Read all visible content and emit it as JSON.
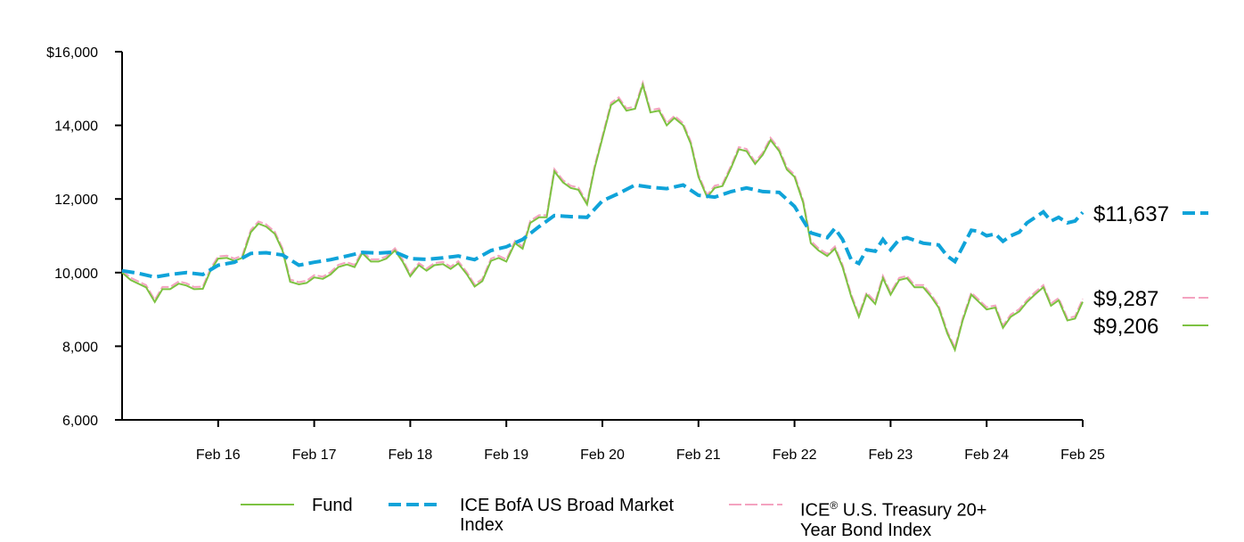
{
  "chart_data": {
    "type": "line",
    "x_tick_labels": [
      "Feb 16",
      "Feb 17",
      "Feb 18",
      "Feb 19",
      "Feb 20",
      "Feb 21",
      "Feb 22",
      "Feb 23",
      "Feb 24",
      "Feb 25"
    ],
    "y_tick_labels": [
      "$16,000",
      "14,000",
      "12,000",
      "10,000",
      "8,000",
      "6,000"
    ],
    "y_ticks": [
      16000,
      14000,
      12000,
      10000,
      8000,
      6000
    ],
    "ylim": [
      6000,
      16000
    ],
    "xlim": [
      2015.08,
      2025.08
    ],
    "grid": false,
    "legend_position": "bottom",
    "series": [
      {
        "name": "Fund",
        "color": "#7dc242",
        "style": "solid",
        "end_label": "$9,206",
        "points": [
          [
            2015.08,
            10000
          ],
          [
            2015.17,
            9800
          ],
          [
            2015.33,
            9600
          ],
          [
            2015.42,
            9200
          ],
          [
            2015.5,
            9550
          ],
          [
            2015.58,
            9550
          ],
          [
            2015.67,
            9700
          ],
          [
            2015.75,
            9650
          ],
          [
            2015.83,
            9550
          ],
          [
            2015.92,
            9560
          ],
          [
            2016.0,
            10050
          ],
          [
            2016.08,
            10380
          ],
          [
            2016.17,
            10400
          ],
          [
            2016.25,
            10320
          ],
          [
            2016.33,
            10400
          ],
          [
            2016.42,
            11100
          ],
          [
            2016.5,
            11330
          ],
          [
            2016.58,
            11250
          ],
          [
            2016.67,
            11050
          ],
          [
            2016.75,
            10600
          ],
          [
            2016.83,
            9750
          ],
          [
            2016.92,
            9680
          ],
          [
            2017.0,
            9720
          ],
          [
            2017.08,
            9870
          ],
          [
            2017.17,
            9830
          ],
          [
            2017.25,
            9950
          ],
          [
            2017.33,
            10150
          ],
          [
            2017.42,
            10220
          ],
          [
            2017.5,
            10150
          ],
          [
            2017.58,
            10530
          ],
          [
            2017.67,
            10300
          ],
          [
            2017.75,
            10300
          ],
          [
            2017.83,
            10380
          ],
          [
            2017.92,
            10600
          ],
          [
            2018.0,
            10300
          ],
          [
            2018.08,
            9900
          ],
          [
            2018.17,
            10200
          ],
          [
            2018.25,
            10050
          ],
          [
            2018.33,
            10200
          ],
          [
            2018.42,
            10230
          ],
          [
            2018.5,
            10100
          ],
          [
            2018.58,
            10250
          ],
          [
            2018.67,
            9950
          ],
          [
            2018.75,
            9620
          ],
          [
            2018.83,
            9770
          ],
          [
            2018.92,
            10320
          ],
          [
            2019.0,
            10400
          ],
          [
            2019.08,
            10300
          ],
          [
            2019.17,
            10800
          ],
          [
            2019.25,
            10650
          ],
          [
            2019.33,
            11350
          ],
          [
            2019.42,
            11500
          ],
          [
            2019.5,
            11500
          ],
          [
            2019.58,
            12750
          ],
          [
            2019.67,
            12450
          ],
          [
            2019.75,
            12300
          ],
          [
            2019.83,
            12250
          ],
          [
            2019.92,
            11850
          ],
          [
            2020.0,
            12850
          ],
          [
            2020.08,
            13650
          ],
          [
            2020.17,
            14550
          ],
          [
            2020.25,
            14700
          ],
          [
            2020.33,
            14400
          ],
          [
            2020.42,
            14450
          ],
          [
            2020.5,
            15100
          ],
          [
            2020.58,
            14350
          ],
          [
            2020.67,
            14400
          ],
          [
            2020.75,
            14000
          ],
          [
            2020.83,
            14200
          ],
          [
            2020.92,
            14000
          ],
          [
            2021.0,
            13500
          ],
          [
            2021.08,
            12600
          ],
          [
            2021.17,
            12050
          ],
          [
            2021.25,
            12300
          ],
          [
            2021.33,
            12350
          ],
          [
            2021.42,
            12850
          ],
          [
            2021.5,
            13350
          ],
          [
            2021.58,
            13300
          ],
          [
            2021.67,
            12950
          ],
          [
            2021.75,
            13200
          ],
          [
            2021.83,
            13600
          ],
          [
            2021.92,
            13300
          ],
          [
            2022.0,
            12800
          ],
          [
            2022.08,
            12600
          ],
          [
            2022.17,
            11900
          ],
          [
            2022.25,
            10800
          ],
          [
            2022.33,
            10600
          ],
          [
            2022.42,
            10450
          ],
          [
            2022.5,
            10650
          ],
          [
            2022.58,
            10150
          ],
          [
            2022.67,
            9350
          ],
          [
            2022.75,
            8800
          ],
          [
            2022.83,
            9400
          ],
          [
            2022.92,
            9150
          ],
          [
            2023.0,
            9850
          ],
          [
            2023.08,
            9400
          ],
          [
            2023.17,
            9800
          ],
          [
            2023.25,
            9850
          ],
          [
            2023.33,
            9600
          ],
          [
            2023.42,
            9600
          ],
          [
            2023.5,
            9350
          ],
          [
            2023.58,
            9050
          ],
          [
            2023.67,
            8350
          ],
          [
            2023.75,
            7900
          ],
          [
            2023.83,
            8700
          ],
          [
            2023.92,
            9400
          ],
          [
            2024.0,
            9200
          ],
          [
            2024.08,
            9000
          ],
          [
            2024.17,
            9050
          ],
          [
            2024.25,
            8500
          ],
          [
            2024.33,
            8800
          ],
          [
            2024.42,
            8950
          ],
          [
            2024.5,
            9200
          ],
          [
            2024.58,
            9400
          ],
          [
            2024.67,
            9600
          ],
          [
            2024.75,
            9100
          ],
          [
            2024.83,
            9250
          ],
          [
            2024.92,
            8700
          ],
          [
            2025.0,
            8750
          ],
          [
            2025.08,
            9206
          ]
        ]
      },
      {
        "name": "ICE BofA US Broad Market Index",
        "color": "#0fa3d9",
        "style": "dashed",
        "end_label": "$11,637",
        "points": [
          [
            2015.08,
            10050
          ],
          [
            2015.25,
            9980
          ],
          [
            2015.42,
            9880
          ],
          [
            2015.58,
            9950
          ],
          [
            2015.75,
            10000
          ],
          [
            2015.92,
            9950
          ],
          [
            2016.08,
            10200
          ],
          [
            2016.25,
            10280
          ],
          [
            2016.42,
            10520
          ],
          [
            2016.58,
            10540
          ],
          [
            2016.75,
            10480
          ],
          [
            2016.92,
            10200
          ],
          [
            2017.08,
            10280
          ],
          [
            2017.25,
            10350
          ],
          [
            2017.42,
            10450
          ],
          [
            2017.58,
            10550
          ],
          [
            2017.75,
            10530
          ],
          [
            2017.92,
            10560
          ],
          [
            2018.08,
            10380
          ],
          [
            2018.25,
            10360
          ],
          [
            2018.42,
            10400
          ],
          [
            2018.58,
            10450
          ],
          [
            2018.75,
            10350
          ],
          [
            2018.92,
            10600
          ],
          [
            2019.08,
            10700
          ],
          [
            2019.25,
            10900
          ],
          [
            2019.42,
            11250
          ],
          [
            2019.58,
            11550
          ],
          [
            2019.75,
            11520
          ],
          [
            2019.92,
            11500
          ],
          [
            2020.08,
            11950
          ],
          [
            2020.25,
            12150
          ],
          [
            2020.42,
            12380
          ],
          [
            2020.58,
            12320
          ],
          [
            2020.75,
            12280
          ],
          [
            2020.92,
            12380
          ],
          [
            2021.08,
            12100
          ],
          [
            2021.25,
            12050
          ],
          [
            2021.42,
            12200
          ],
          [
            2021.58,
            12300
          ],
          [
            2021.75,
            12200
          ],
          [
            2021.92,
            12180
          ],
          [
            2022.08,
            11800
          ],
          [
            2022.25,
            11080
          ],
          [
            2022.42,
            10950
          ],
          [
            2022.5,
            11200
          ],
          [
            2022.58,
            10900
          ],
          [
            2022.67,
            10350
          ],
          [
            2022.75,
            10250
          ],
          [
            2022.83,
            10620
          ],
          [
            2022.92,
            10580
          ],
          [
            2023.0,
            10900
          ],
          [
            2023.08,
            10620
          ],
          [
            2023.17,
            10900
          ],
          [
            2023.25,
            10950
          ],
          [
            2023.42,
            10800
          ],
          [
            2023.58,
            10750
          ],
          [
            2023.67,
            10450
          ],
          [
            2023.75,
            10300
          ],
          [
            2023.83,
            10700
          ],
          [
            2023.92,
            11150
          ],
          [
            2024.0,
            11120
          ],
          [
            2024.08,
            11000
          ],
          [
            2024.17,
            11050
          ],
          [
            2024.25,
            10850
          ],
          [
            2024.33,
            11000
          ],
          [
            2024.42,
            11100
          ],
          [
            2024.5,
            11350
          ],
          [
            2024.67,
            11650
          ],
          [
            2024.75,
            11400
          ],
          [
            2024.83,
            11500
          ],
          [
            2024.92,
            11350
          ],
          [
            2025.0,
            11400
          ],
          [
            2025.08,
            11637
          ]
        ]
      },
      {
        "name": "ICE® U.S. Treasury 20+ Year Bond Index",
        "color": "#f4a3c0",
        "style": "dashed",
        "end_label": "$9,287",
        "offset_from_fund": 60
      }
    ],
    "legend": [
      {
        "label": "Fund",
        "series": 0
      },
      {
        "label": "ICE BofA US Broad Market Index",
        "series": 1
      },
      {
        "label": "ICE® U.S. Treasury 20+ Year Bond Index",
        "series": 2
      }
    ]
  },
  "legend_text": {
    "fund": "Fund",
    "broad_line1": "ICE BofA US Broad Market",
    "broad_line2": "Index",
    "treasury_prefix": "ICE",
    "treasury_sup": "®",
    "treasury_line1_rest": " U.S. Treasury 20+",
    "treasury_line2": "Year Bond Index"
  }
}
